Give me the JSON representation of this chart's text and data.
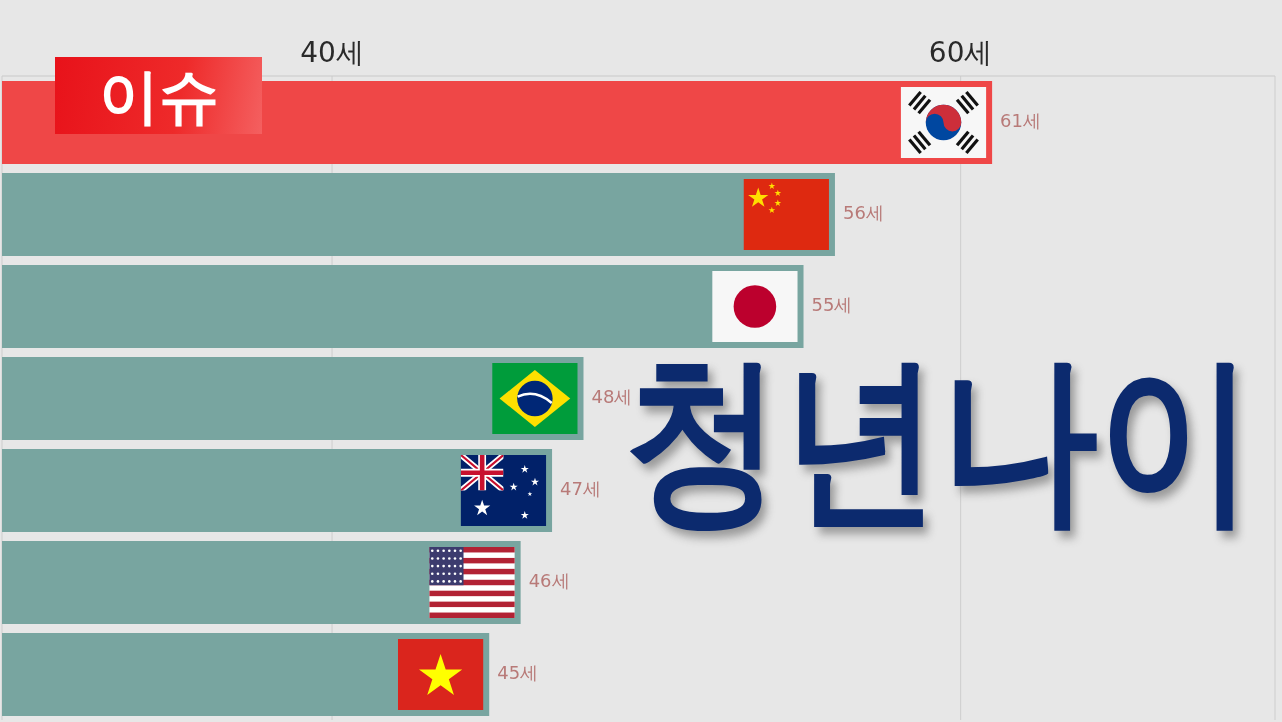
{
  "chart_data": {
    "type": "bar",
    "orientation": "horizontal",
    "title": "청년나이",
    "annotations": [
      "이슈"
    ],
    "categories": [
      null,
      null,
      null,
      null,
      null,
      null,
      null
    ],
    "values": [
      61,
      56,
      55,
      48,
      47,
      46,
      45
    ],
    "colors": [
      "#ef4747",
      "#78a5a0",
      "#78a5a0",
      "#78a5a0",
      "#78a5a0",
      "#78a5a0",
      "#78a5a0"
    ],
    "value_labels": [
      "61세",
      "56세",
      "55세",
      "48세",
      "47세",
      "46세",
      "45세"
    ],
    "xlim": [
      29.5,
      70
    ],
    "xticks": [
      {
        "value": 40,
        "label": "40세"
      },
      {
        "value": 60,
        "label": "60세"
      }
    ],
    "grid": "x"
  }
}
